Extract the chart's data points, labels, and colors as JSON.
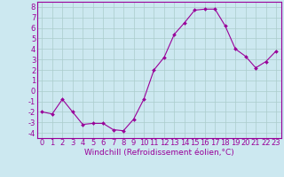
{
  "x": [
    0,
    1,
    2,
    3,
    4,
    5,
    6,
    7,
    8,
    9,
    10,
    11,
    12,
    13,
    14,
    15,
    16,
    17,
    18,
    19,
    20,
    21,
    22,
    23
  ],
  "y": [
    -2,
    -2.2,
    -0.8,
    -2,
    -3.2,
    -3.1,
    -3.1,
    -3.7,
    -3.8,
    -2.7,
    -0.8,
    2.0,
    3.2,
    5.4,
    6.5,
    7.7,
    7.8,
    7.8,
    6.2,
    4.0,
    3.3,
    2.2,
    2.8,
    3.8
  ],
  "line_color": "#990099",
  "marker": "D",
  "marker_size": 2.0,
  "bg_color": "#cce8f0",
  "grid_color": "#aacccc",
  "xlabel": "Windchill (Refroidissement éolien,°C)",
  "ylabel_ticks": [
    -4,
    -3,
    -2,
    -1,
    0,
    1,
    2,
    3,
    4,
    5,
    6,
    7,
    8
  ],
  "xlim": [
    -0.5,
    23.5
  ],
  "ylim": [
    -4.5,
    8.5
  ],
  "label_color": "#990099",
  "tick_color": "#990099",
  "tick_font_size": 6.0,
  "xlabel_font_size": 6.5
}
